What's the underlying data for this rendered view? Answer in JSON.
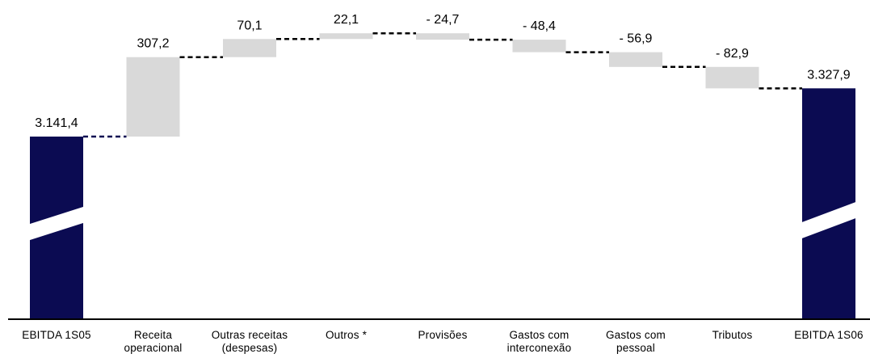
{
  "chart_data": {
    "type": "bar",
    "subtype": "waterfall",
    "title": "",
    "xlabel": "",
    "ylabel": "",
    "axis_break": true,
    "grid": false,
    "legend": "none",
    "colors": {
      "total": "#0b0b52",
      "change": "#d9d9d9",
      "connector_total": "#0b0b52",
      "connector": "#000000"
    },
    "categories": [
      [
        "EBITDA 1S05"
      ],
      [
        "Receita",
        "operacional"
      ],
      [
        "Outras receitas",
        "(despesas)"
      ],
      [
        "Outros *"
      ],
      [
        "Provisões"
      ],
      [
        "Gastos com",
        "interconexão"
      ],
      [
        "Gastos com",
        "pessoal"
      ],
      [
        "Tributos"
      ],
      [
        "EBITDA 1S06"
      ]
    ],
    "values": [
      3141.4,
      307.2,
      70.1,
      22.1,
      -24.7,
      -48.4,
      -56.9,
      -82.9,
      3327.9
    ],
    "kinds": [
      "total",
      "change",
      "change",
      "change",
      "change",
      "change",
      "change",
      "change",
      "total"
    ],
    "labels": [
      "3.141,4",
      "307,2",
      "70,1",
      "22,1",
      "- 24,7",
      "- 48,4",
      "- 56,9",
      "- 82,9",
      "3.327,9"
    ]
  }
}
